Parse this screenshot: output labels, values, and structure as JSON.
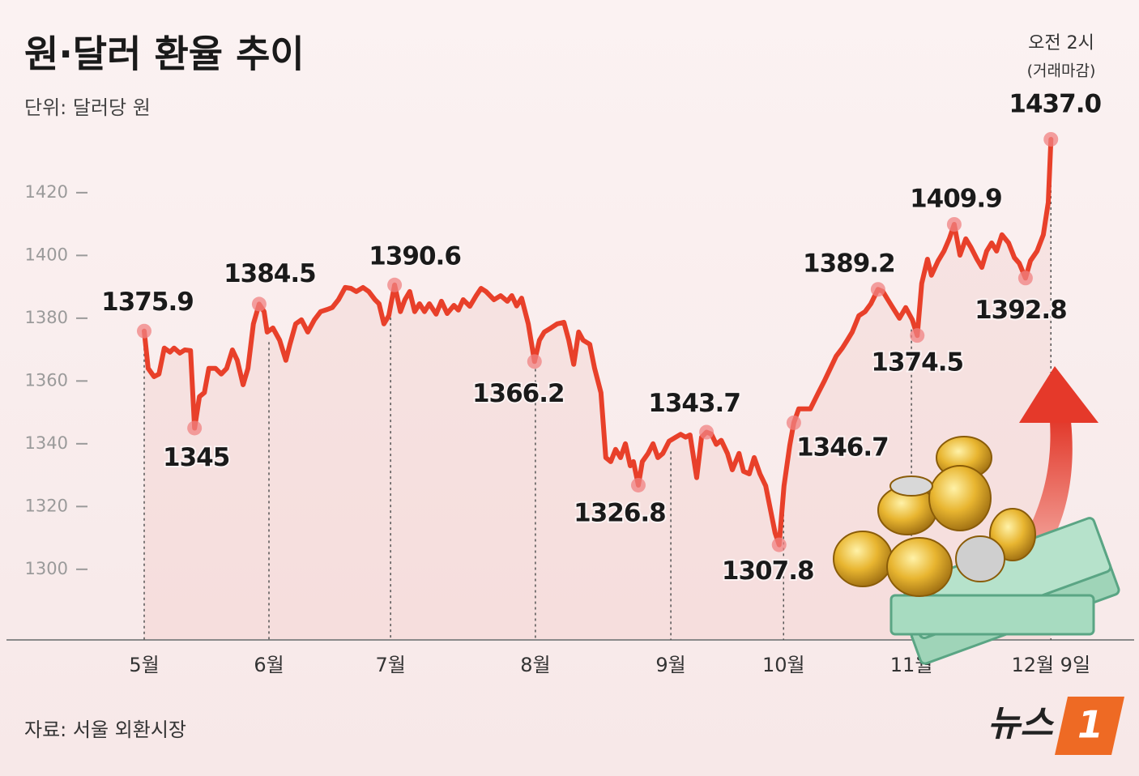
{
  "chart_data": {
    "type": "line",
    "title": "원·달러 환율 추이",
    "subtitle": "단위: 달러당 원",
    "source": "자료: 서울 외환시장",
    "logo": {
      "text": "뉴스",
      "mark": "1"
    },
    "end_note": [
      "오전 2시",
      "(거래마감)"
    ],
    "ylim": [
      1277.5,
      1445
    ],
    "yticks": [
      1300,
      1320,
      1340,
      1360,
      1380,
      1400,
      1420
    ],
    "xlim": [
      -10,
      215
    ],
    "xticks": [
      {
        "value": 0,
        "label": "5월"
      },
      {
        "value": 28.0,
        "label": "6월"
      },
      {
        "value": 55.3,
        "label": "7월"
      },
      {
        "value": 87.8,
        "label": "8월"
      },
      {
        "value": 118.2,
        "label": "9월"
      },
      {
        "value": 143.5,
        "label": "10월"
      },
      {
        "value": 172.2,
        "label": "11월"
      },
      {
        "value": 203.5,
        "label": "12월 9일"
      }
    ],
    "series": [
      {
        "name": "원·달러 환율",
        "color": "#e8402a",
        "x": [
          0,
          0.9,
          2.2,
          3.3,
          4.5,
          5.8,
          6.7,
          8.0,
          9.1,
          10.4,
          11.3,
          12.4,
          13.5,
          14.5,
          16.0,
          17.3,
          18.5,
          19.8,
          20.9,
          22.2,
          23.3,
          24.5,
          25.8,
          26.9,
          27.6,
          28.9,
          30.4,
          31.8,
          32.7,
          34.0,
          35.3,
          36.7,
          38.2,
          39.6,
          41.1,
          42.2,
          43.6,
          45.1,
          46.4,
          47.6,
          49.1,
          50.4,
          51.8,
          52.7,
          53.8,
          54.9,
          56.2,
          57.5,
          58.5,
          59.6,
          60.7,
          61.8,
          62.9,
          64.0,
          65.5,
          66.7,
          68.0,
          69.5,
          70.5,
          71.6,
          73.1,
          74.5,
          75.6,
          76.7,
          78.5,
          80.0,
          81.5,
          82.5,
          83.6,
          84.7,
          86.2,
          87.6,
          88.7,
          89.8,
          91.3,
          92.7,
          94.2,
          95.3,
          96.4,
          97.5,
          98.5,
          100.0,
          101.1,
          102.5,
          103.6,
          104.7,
          105.8,
          106.9,
          108.0,
          109.1,
          109.8,
          110.9,
          111.8,
          113.1,
          114.2,
          115.3,
          116.4,
          117.8,
          119.3,
          120.4,
          121.5,
          122.5,
          124.0,
          125.1,
          126.2,
          127.3,
          128.4,
          129.5,
          130.9,
          132.0,
          133.5,
          134.5,
          135.8,
          136.9,
          138.2,
          139.5,
          140.4,
          141.6,
          142.5,
          143.6,
          144.9,
          145.8,
          146.9,
          148.0,
          149.5,
          151.3,
          152.7,
          154.0,
          155.3,
          156.7,
          157.8,
          158.9,
          160.4,
          161.8,
          163.1,
          164.7,
          165.8,
          166.9,
          168.0,
          169.5,
          170.9,
          172.4,
          173.5,
          174.5,
          175.8,
          176.7,
          178.2,
          179.5,
          180.7,
          181.8,
          183.1,
          184.4,
          185.5,
          186.9,
          188.0,
          189.1,
          190.2,
          191.3,
          192.5,
          194.0,
          195.3,
          196.4,
          197.8,
          198.9,
          200.4,
          201.8,
          202.9,
          203.5
        ],
        "values": [
          1375.9,
          1364.0,
          1361.4,
          1362.2,
          1370.5,
          1369.2,
          1370.5,
          1368.9,
          1369.9,
          1369.7,
          1345,
          1355.0,
          1356.3,
          1364.0,
          1364.0,
          1362.2,
          1364.0,
          1369.9,
          1366.6,
          1358.8,
          1364.0,
          1378.2,
          1384.5,
          1382.1,
          1375.6,
          1376.9,
          1373.0,
          1366.6,
          1371.7,
          1378.2,
          1379.5,
          1375.6,
          1379.5,
          1382.1,
          1382.8,
          1383.4,
          1385.9,
          1389.8,
          1389.5,
          1388.5,
          1389.8,
          1388.5,
          1385.9,
          1384.6,
          1378.2,
          1380.8,
          1390.6,
          1382.1,
          1385.9,
          1388.5,
          1382.1,
          1384.6,
          1382.1,
          1384.6,
          1381.3,
          1385.4,
          1381.5,
          1384.1,
          1382.6,
          1385.9,
          1383.8,
          1387.2,
          1389.5,
          1388.5,
          1385.9,
          1387.2,
          1385.4,
          1387.2,
          1383.9,
          1386.4,
          1378.2,
          1366.2,
          1373.0,
          1375.6,
          1376.9,
          1378.2,
          1378.7,
          1373.0,
          1365.3,
          1375.6,
          1373.0,
          1371.7,
          1364.0,
          1356.3,
          1335.6,
          1334.3,
          1338.2,
          1335.6,
          1340.0,
          1333.0,
          1334.3,
          1326.8,
          1334.3,
          1336.9,
          1340.0,
          1335.6,
          1336.9,
          1340.8,
          1342.1,
          1343.0,
          1342.1,
          1342.8,
          1329.2,
          1342.1,
          1343.7,
          1343.1,
          1339.8,
          1341.1,
          1336.9,
          1331.7,
          1336.9,
          1331.2,
          1330.4,
          1335.6,
          1330.4,
          1326.6,
          1320.1,
          1311.6,
          1307.8,
          1326.6,
          1339.5,
          1346.7,
          1351.1,
          1351.1,
          1351.1,
          1356.2,
          1360.1,
          1364.0,
          1367.9,
          1370.5,
          1373.0,
          1375.6,
          1380.8,
          1382.1,
          1384.6,
          1389.2,
          1388.5,
          1385.9,
          1383.4,
          1380.0,
          1383.4,
          1379.5,
          1374.5,
          1391.1,
          1398.8,
          1393.7,
          1398.3,
          1401.4,
          1405.3,
          1409.9,
          1400.1,
          1405.3,
          1402.7,
          1398.8,
          1396.2,
          1401.4,
          1404.0,
          1401.4,
          1406.6,
          1404.0,
          1399.3,
          1397.5,
          1392.8,
          1398.3,
          1401.4,
          1406.6,
          1416.9,
          1437.0
        ]
      }
    ],
    "highlights": {
      "x": [
        0,
        11.3,
        25.8,
        56.2,
        87.6,
        110.9,
        126.2,
        142.5,
        145.8,
        164.7,
        173.5,
        181.8,
        197.8,
        203.5
      ],
      "values": [
        1375.9,
        1345,
        1384.5,
        1390.6,
        1366.2,
        1326.8,
        1343.7,
        1307.8,
        1346.7,
        1389.2,
        1374.5,
        1409.9,
        1392.8,
        1437.0
      ],
      "value_labels": [
        "1375.9",
        "1345",
        "1384.5",
        "1390.6",
        "1366.2",
        "1326.8",
        "1343.7",
        "1307.8",
        "1346.7",
        "1389.2",
        "1374.5",
        "1409.9",
        "1392.8",
        "1437.0"
      ]
    }
  }
}
